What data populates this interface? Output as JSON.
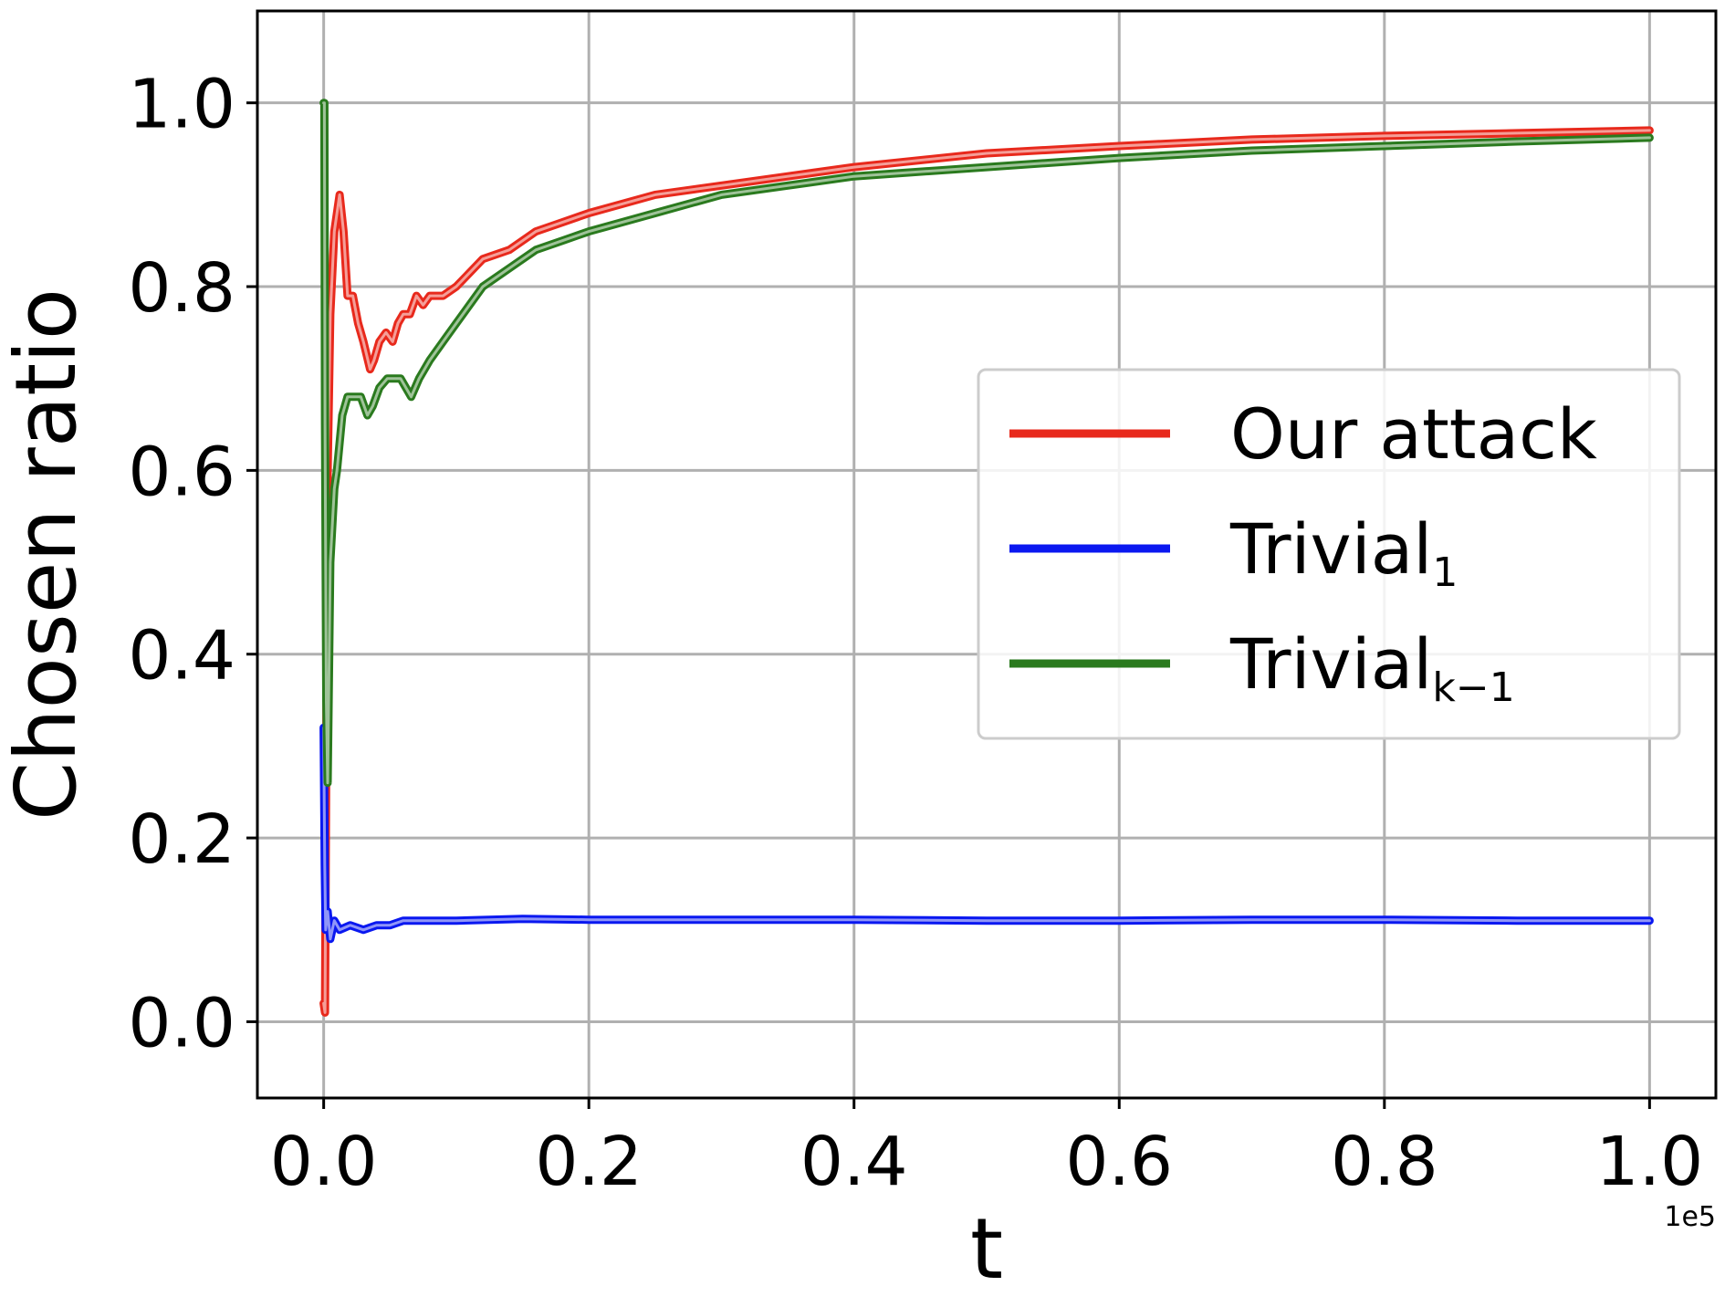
{
  "chart_data": {
    "type": "line",
    "xlabel": "t",
    "ylabel": "Chosen ratio",
    "x_offset_label": "1e5",
    "xlim": [
      -0.05,
      1.05
    ],
    "ylim": [
      -0.083,
      1.1
    ],
    "x_ticks": [
      0.0,
      0.2,
      0.4,
      0.6,
      0.8,
      1.0
    ],
    "x_tick_labels": [
      "0.0",
      "0.2",
      "0.4",
      "0.6",
      "0.8",
      "1.0"
    ],
    "y_ticks": [
      0.0,
      0.2,
      0.4,
      0.6,
      0.8,
      1.0
    ],
    "y_tick_labels": [
      "0.0",
      "0.2",
      "0.4",
      "0.6",
      "0.8",
      "1.0"
    ],
    "grid": true,
    "legend_position": "center-right",
    "series": [
      {
        "name": "Our attack",
        "color": "#e8291c",
        "x": [
          0.0,
          0.001,
          0.002,
          0.003,
          0.005,
          0.008,
          0.012,
          0.015,
          0.018,
          0.022,
          0.026,
          0.03,
          0.035,
          0.038,
          0.042,
          0.047,
          0.052,
          0.056,
          0.06,
          0.065,
          0.07,
          0.075,
          0.08,
          0.09,
          0.1,
          0.12,
          0.14,
          0.16,
          0.18,
          0.2,
          0.25,
          0.3,
          0.35,
          0.4,
          0.5,
          0.6,
          0.7,
          0.8,
          0.9,
          1.0
        ],
        "y": [
          0.02,
          0.01,
          0.3,
          0.6,
          0.77,
          0.86,
          0.9,
          0.86,
          0.79,
          0.79,
          0.76,
          0.74,
          0.71,
          0.72,
          0.74,
          0.75,
          0.74,
          0.76,
          0.77,
          0.77,
          0.79,
          0.78,
          0.79,
          0.79,
          0.8,
          0.83,
          0.84,
          0.86,
          0.87,
          0.88,
          0.9,
          0.91,
          0.92,
          0.93,
          0.945,
          0.953,
          0.96,
          0.964,
          0.967,
          0.97
        ]
      },
      {
        "name": "Trivial",
        "subscript": "1",
        "color": "#0a18f0",
        "x": [
          0.0,
          0.0008,
          0.0015,
          0.003,
          0.005,
          0.008,
          0.012,
          0.02,
          0.03,
          0.04,
          0.05,
          0.06,
          0.08,
          0.1,
          0.15,
          0.2,
          0.3,
          0.4,
          0.5,
          0.6,
          0.7,
          0.8,
          0.9,
          1.0
        ],
        "y": [
          0.32,
          0.17,
          0.1,
          0.12,
          0.09,
          0.11,
          0.1,
          0.105,
          0.1,
          0.105,
          0.105,
          0.11,
          0.11,
          0.11,
          0.112,
          0.111,
          0.111,
          0.111,
          0.11,
          0.11,
          0.111,
          0.111,
          0.11,
          0.11
        ]
      },
      {
        "name": "Trivial",
        "subscript": "k−1",
        "color": "#2a7a1e",
        "x": [
          0.0,
          0.0005,
          0.001,
          0.002,
          0.003,
          0.005,
          0.008,
          0.01,
          0.014,
          0.018,
          0.022,
          0.028,
          0.033,
          0.037,
          0.042,
          0.048,
          0.054,
          0.058,
          0.062,
          0.066,
          0.072,
          0.08,
          0.09,
          0.1,
          0.12,
          0.14,
          0.16,
          0.18,
          0.2,
          0.25,
          0.3,
          0.35,
          0.4,
          0.5,
          0.6,
          0.7,
          0.8,
          0.9,
          1.0
        ],
        "y": [
          1.0,
          1.0,
          0.65,
          0.35,
          0.26,
          0.5,
          0.58,
          0.6,
          0.66,
          0.68,
          0.68,
          0.68,
          0.66,
          0.67,
          0.69,
          0.7,
          0.7,
          0.7,
          0.69,
          0.68,
          0.7,
          0.72,
          0.74,
          0.76,
          0.8,
          0.82,
          0.84,
          0.85,
          0.86,
          0.88,
          0.9,
          0.91,
          0.92,
          0.93,
          0.94,
          0.948,
          0.953,
          0.958,
          0.962
        ]
      }
    ]
  }
}
